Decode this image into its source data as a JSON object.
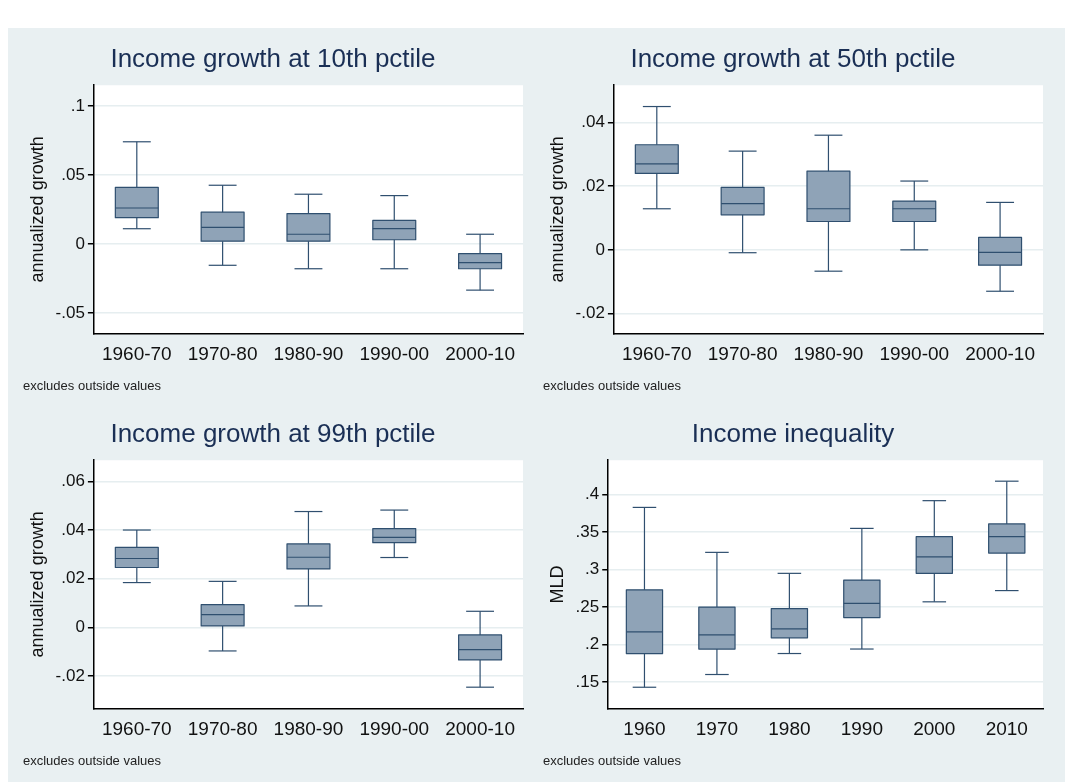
{
  "chart_data": [
    {
      "type": "box",
      "title": "Income growth at 10th pctile",
      "ylabel": "annualized growth",
      "annotations": [
        "excludes outside values"
      ],
      "color": "#8fa3b7",
      "grid": "y",
      "categories": [
        "1960-70",
        "1970-80",
        "1980-90",
        "1990-00",
        "2000-10"
      ],
      "boxes": [
        {
          "low": 0.011,
          "q1": 0.019,
          "median": 0.026,
          "q3": 0.041,
          "high": 0.074
        },
        {
          "low": -0.0155,
          "q1": 0.002,
          "median": 0.012,
          "q3": 0.023,
          "high": 0.0425
        },
        {
          "low": -0.018,
          "q1": 0.002,
          "median": 0.007,
          "q3": 0.022,
          "high": 0.036
        },
        {
          "low": -0.018,
          "q1": 0.003,
          "median": 0.011,
          "q3": 0.017,
          "high": 0.035
        },
        {
          "low": -0.0335,
          "q1": -0.018,
          "median": -0.0135,
          "q3": -0.007,
          "high": 0.007
        }
      ],
      "ylim": [
        -0.065,
        0.115
      ],
      "yticks": [
        {
          "value": -0.05,
          "label": "-.05"
        },
        {
          "value": 0,
          "label": "0"
        },
        {
          "value": 0.05,
          "label": ".05"
        },
        {
          "value": 0.1,
          "label": ".1"
        }
      ]
    },
    {
      "type": "box",
      "title": "Income growth at 50th pctile",
      "ylabel": "annualized growth",
      "annotations": [
        "excludes outside values"
      ],
      "color": "#8fa3b7",
      "grid": "y",
      "categories": [
        "1960-70",
        "1970-80",
        "1980-90",
        "1990-00",
        "2000-10"
      ],
      "boxes": [
        {
          "low": 0.0129,
          "q1": 0.024,
          "median": 0.027,
          "q3": 0.033,
          "high": 0.045
        },
        {
          "low": -0.0009,
          "q1": 0.011,
          "median": 0.0145,
          "q3": 0.0196,
          "high": 0.031
        },
        {
          "low": -0.0067,
          "q1": 0.0089,
          "median": 0.0129,
          "q3": 0.0247,
          "high": 0.036
        },
        {
          "low": 0,
          "q1": 0.0089,
          "median": 0.0129,
          "q3": 0.0153,
          "high": 0.0216
        },
        {
          "low": -0.013,
          "q1": -0.0048,
          "median": -0.0008,
          "q3": 0.0039,
          "high": 0.0149
        }
      ],
      "ylim": [
        -0.0263,
        0.0517
      ],
      "yticks": [
        {
          "value": -0.02,
          "label": "-.02"
        },
        {
          "value": 0,
          "label": "0"
        },
        {
          "value": 0.02,
          "label": ".02"
        },
        {
          "value": 0.04,
          "label": ".04"
        }
      ]
    },
    {
      "type": "box",
      "title": "Income growth at 99th pctile",
      "ylabel": "annualized growth",
      "annotations": [
        "excludes outside values"
      ],
      "color": "#8fa3b7",
      "grid": "y",
      "categories": [
        "1960-70",
        "1970-80",
        "1980-90",
        "1990-00",
        "2000-10"
      ],
      "boxes": [
        {
          "low": 0.0184,
          "q1": 0.0246,
          "median": 0.0283,
          "q3": 0.0329,
          "high": 0.04
        },
        {
          "low": -0.0097,
          "q1": 0.0006,
          "median": 0.0052,
          "q3": 0.0093,
          "high": 0.0189
        },
        {
          "low": 0.0088,
          "q1": 0.024,
          "median": 0.0288,
          "q3": 0.0343,
          "high": 0.0476
        },
        {
          "low": 0.0287,
          "q1": 0.0348,
          "median": 0.037,
          "q3": 0.0406,
          "high": 0.0482
        },
        {
          "low": -0.0246,
          "q1": -0.0134,
          "median": -0.0092,
          "q3": -0.0031,
          "high": 0.0066
        }
      ],
      "ylim": [
        -0.0334,
        0.0687
      ],
      "yticks": [
        {
          "value": -0.02,
          "label": "-.02"
        },
        {
          "value": 0,
          "label": "0"
        },
        {
          "value": 0.02,
          "label": ".02"
        },
        {
          "value": 0.04,
          "label": ".04"
        },
        {
          "value": 0.06,
          "label": ".06"
        }
      ]
    },
    {
      "type": "box",
      "title": "Income inequality",
      "ylabel": "MLD",
      "annotations": [
        "excludes outside values"
      ],
      "color": "#8fa3b7",
      "grid": "y",
      "categories": [
        "1960",
        "1970",
        "1980",
        "1990",
        "2000",
        "2010"
      ],
      "boxes": [
        {
          "low": 0.143,
          "q1": 0.188,
          "median": 0.217,
          "q3": 0.273,
          "high": 0.383
        },
        {
          "low": 0.16,
          "q1": 0.194,
          "median": 0.213,
          "q3": 0.25,
          "high": 0.323
        },
        {
          "low": 0.188,
          "q1": 0.209,
          "median": 0.221,
          "q3": 0.248,
          "high": 0.295
        },
        {
          "low": 0.194,
          "q1": 0.236,
          "median": 0.255,
          "q3": 0.286,
          "high": 0.355
        },
        {
          "low": 0.257,
          "q1": 0.295,
          "median": 0.317,
          "q3": 0.344,
          "high": 0.392
        },
        {
          "low": 0.272,
          "q1": 0.322,
          "median": 0.344,
          "q3": 0.361,
          "high": 0.418
        }
      ],
      "ylim": [
        0.1145,
        0.446
      ],
      "yticks": [
        {
          "value": 0.15,
          "label": ".15"
        },
        {
          "value": 0.2,
          "label": ".2"
        },
        {
          "value": 0.25,
          "label": ".25"
        },
        {
          "value": 0.3,
          "label": ".3"
        },
        {
          "value": 0.35,
          "label": ".35"
        },
        {
          "value": 0.4,
          "label": ".4"
        }
      ]
    }
  ]
}
